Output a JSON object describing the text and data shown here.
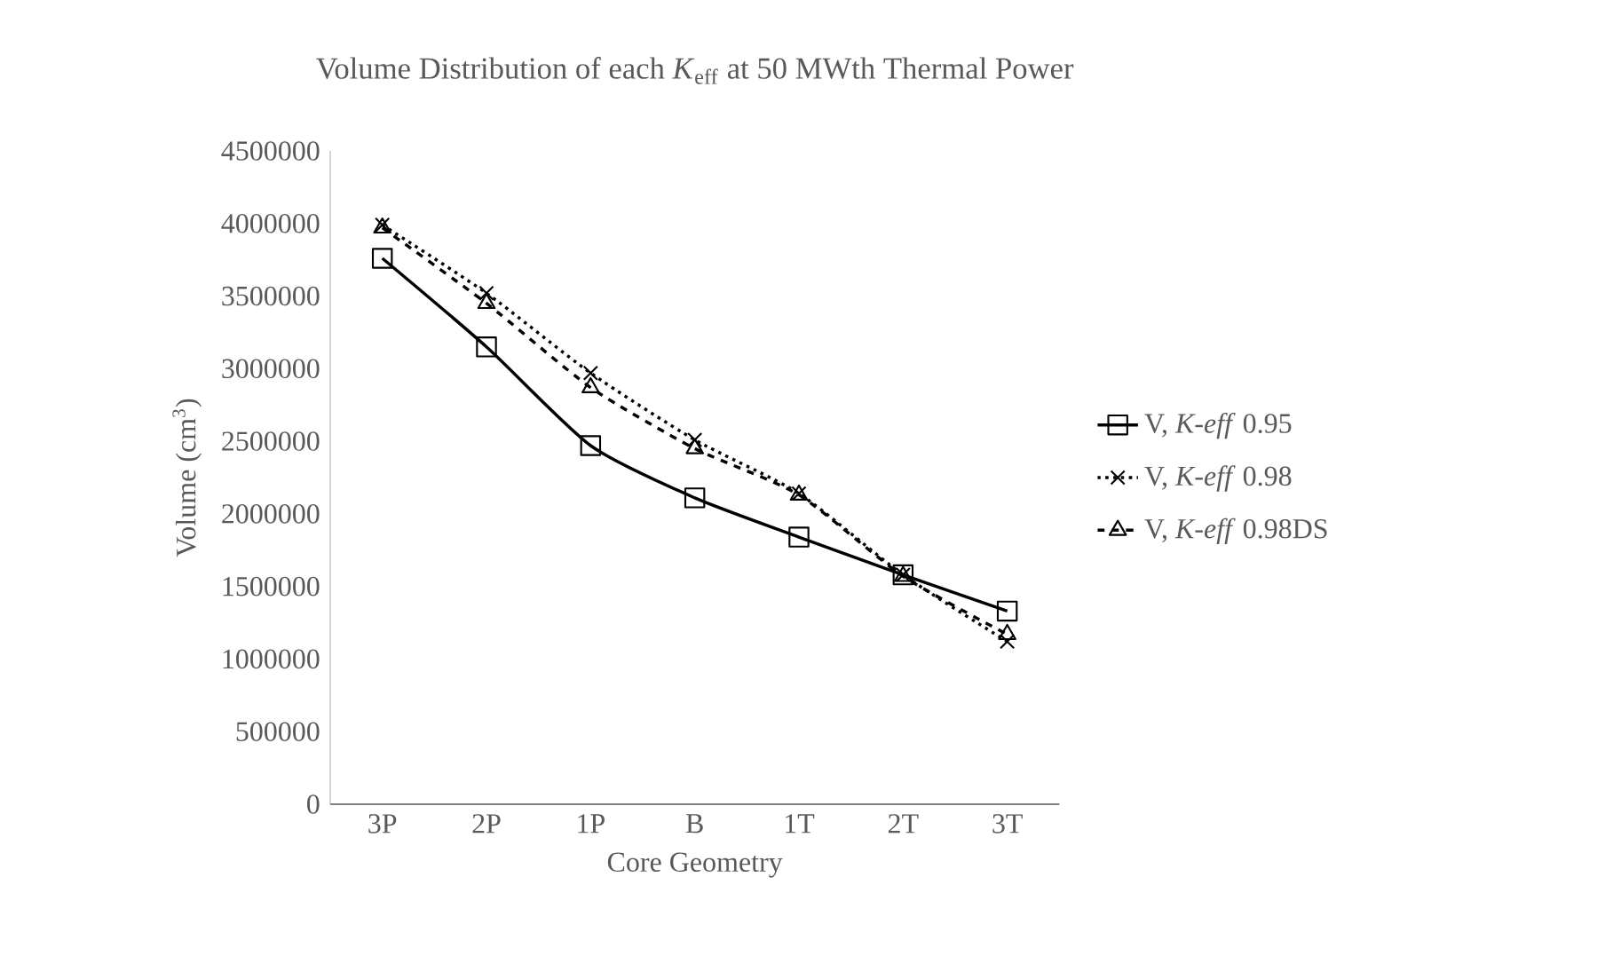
{
  "chart_data": {
    "type": "line",
    "title": "Volume Distribution of each *K*$_{eff}$ at 50 MWth Thermal Power",
    "xlabel": "Core Geometry",
    "ylabel": "Volume (cm$^{3}$)",
    "categories": [
      "3P",
      "2P",
      "1P",
      "B",
      "1T",
      "2T",
      "3T"
    ],
    "ylim": [
      0,
      4500000
    ],
    "yticks": [
      0,
      500000,
      1000000,
      1500000,
      2000000,
      2500000,
      3000000,
      3500000,
      4000000,
      4500000
    ],
    "grid": false,
    "legend": "right",
    "series": [
      {
        "name": "V, *K-eff* 0.95",
        "color": "#000000",
        "marker": "square",
        "line_style": "solid",
        "values": [
          3760000,
          3150000,
          2470000,
          2110000,
          1840000,
          1580000,
          1330000
        ]
      },
      {
        "name": "V, *K-eff* 0.98",
        "color": "#000000",
        "marker": "cross",
        "line_style": "dotted",
        "values": [
          3990000,
          3520000,
          2970000,
          2510000,
          2140000,
          1580000,
          1120000
        ]
      },
      {
        "name": "V, *K-eff* 0.98DS",
        "color": "#000000",
        "marker": "triangle",
        "line_style": "dashed",
        "values": [
          3970000,
          3450000,
          2870000,
          2450000,
          2130000,
          1570000,
          1170000
        ]
      }
    ]
  }
}
